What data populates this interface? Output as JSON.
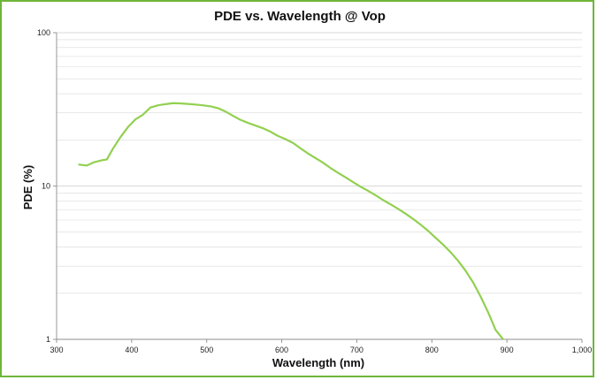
{
  "chart_data": {
    "type": "line",
    "title": "PDE vs. Wavelength @ Vop",
    "xlabel": "Wavelength (nm)",
    "ylabel": "PDE (%)",
    "xlim": [
      300,
      1000
    ],
    "ylim": [
      1,
      100
    ],
    "yscale": "log",
    "grid": true,
    "legend": "none",
    "x_ticks": [
      300,
      400,
      500,
      600,
      700,
      800,
      900,
      1000
    ],
    "x_tick_labels": [
      "300",
      "400",
      "500",
      "600",
      "700",
      "800",
      "900",
      "1,000"
    ],
    "y_ticks": [
      1,
      10,
      100
    ],
    "y_tick_labels": [
      "1",
      "10",
      "100"
    ],
    "line_color": "#92d050",
    "frame_color": "#6fb53a",
    "grid_color": "#d9d9d9",
    "series": [
      {
        "x": [
          330,
          340,
          350,
          360,
          367,
          375,
          385,
          395,
          405,
          415,
          425,
          435,
          445,
          455,
          465,
          475,
          485,
          495,
          505,
          515,
          525,
          535,
          545,
          555,
          565,
          575,
          585,
          595,
          605,
          615,
          625,
          635,
          645,
          655,
          665,
          675,
          685,
          695,
          705,
          715,
          725,
          735,
          745,
          755,
          765,
          775,
          785,
          795,
          805,
          815,
          825,
          835,
          845,
          855,
          865,
          875,
          885,
          895,
          900
        ],
        "values": [
          13.8,
          13.6,
          14.3,
          14.7,
          14.9,
          17.5,
          20.8,
          24.2,
          27.2,
          29.2,
          32.5,
          33.6,
          34.2,
          34.7,
          34.6,
          34.3,
          34.0,
          33.6,
          33.1,
          32.2,
          30.6,
          28.7,
          27.0,
          25.8,
          24.8,
          23.8,
          22.6,
          21.2,
          20.2,
          19.1,
          17.6,
          16.3,
          15.2,
          14.2,
          13.1,
          12.2,
          11.4,
          10.6,
          9.9,
          9.3,
          8.7,
          8.1,
          7.6,
          7.1,
          6.6,
          6.1,
          5.6,
          5.1,
          4.6,
          4.15,
          3.7,
          3.25,
          2.8,
          2.35,
          1.9,
          1.5,
          1.15,
          1.0,
          0.97
        ]
      }
    ]
  }
}
